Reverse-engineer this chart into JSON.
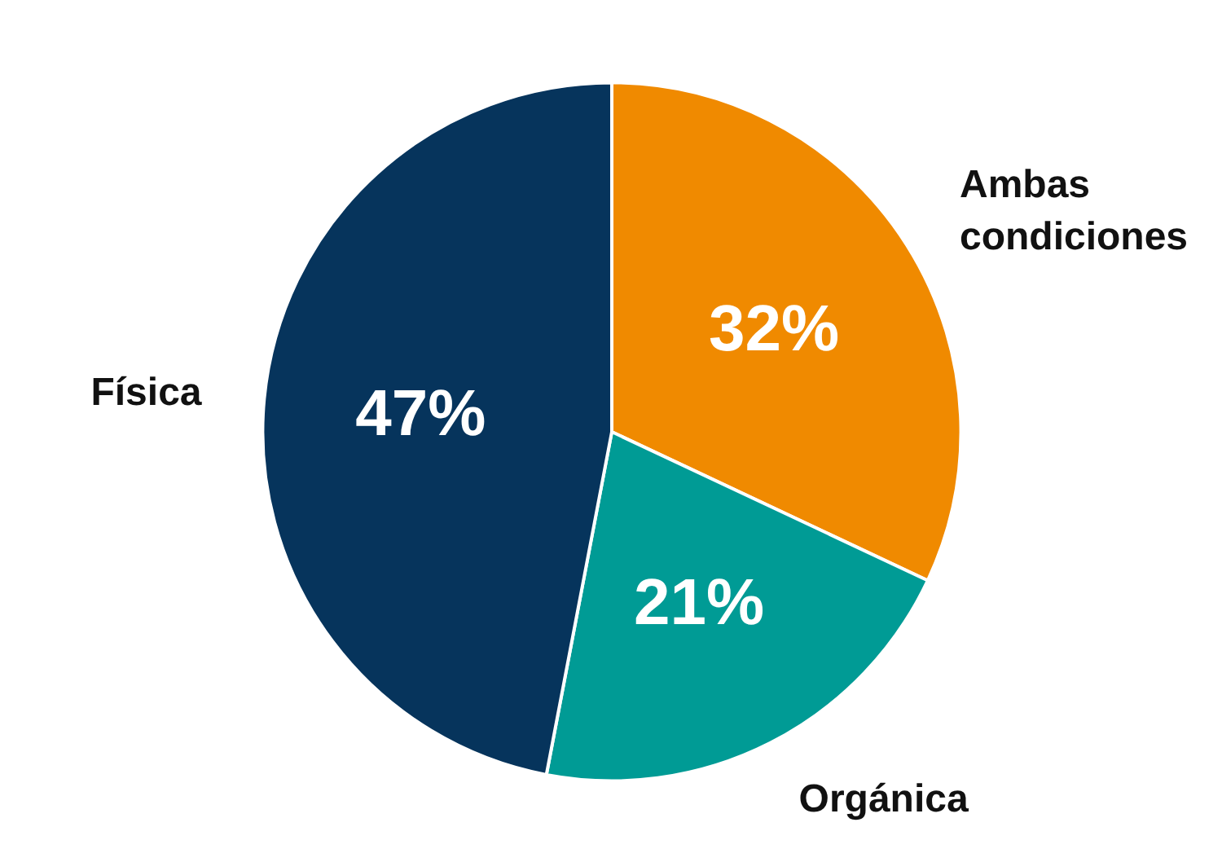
{
  "chart_data": {
    "type": "pie",
    "categories": [
      "Ambas condiciones",
      "Orgánica",
      "Física"
    ],
    "values": [
      32,
      21,
      47
    ],
    "colors": [
      "#f08a00",
      "#009b95",
      "#06345c"
    ],
    "value_labels": [
      "32%",
      "21%",
      "47%"
    ]
  }
}
